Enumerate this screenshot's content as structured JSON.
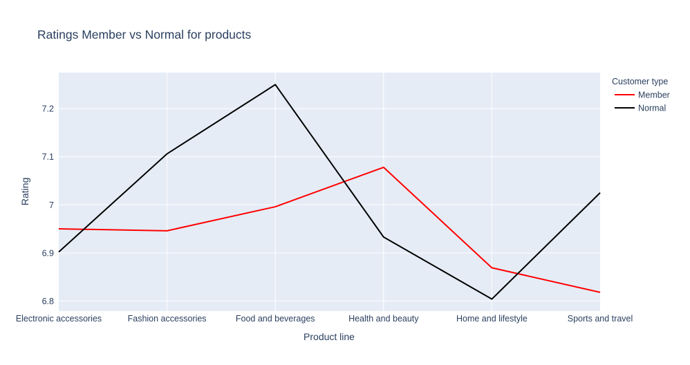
{
  "chart_data": {
    "type": "line",
    "title": "Ratings Member vs Normal for products",
    "xlabel": "Product line",
    "ylabel": "Rating",
    "categories": [
      "Electronic accessories",
      "Fashion accessories",
      "Food and beverages",
      "Health and beauty",
      "Home and lifestyle",
      "Sports and travel"
    ],
    "series": [
      {
        "name": "Member",
        "color": "#ff0000",
        "values": [
          6.95,
          6.946,
          6.996,
          7.078,
          6.869,
          6.818
        ]
      },
      {
        "name": "Normal",
        "color": "#000000",
        "values": [
          6.902,
          7.106,
          7.25,
          6.933,
          6.804,
          7.025
        ]
      }
    ],
    "ylim": [
      6.779,
      7.275
    ],
    "yticks": [
      {
        "value": 6.8,
        "label": "6.8"
      },
      {
        "value": 6.9,
        "label": "6.9"
      },
      {
        "value": 7.0,
        "label": "7"
      },
      {
        "value": 7.1,
        "label": "7.1"
      },
      {
        "value": 7.2,
        "label": "7.2"
      }
    ],
    "legend": {
      "title": "Customer type",
      "placement": "right"
    },
    "grid": true,
    "colors": {
      "plot_background": "#e5ecf6",
      "grid": "#ffffff",
      "text": "#2a3f5f",
      "tick_text": "#2a3f5f"
    }
  }
}
